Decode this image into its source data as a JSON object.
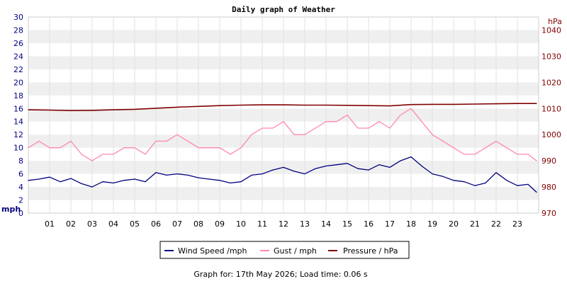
{
  "chart_data": {
    "type": "line",
    "title": "Daily graph of Weather",
    "footer": "Graph for: 17th May 2026; Load time: 0.06 s",
    "left_axis": {
      "label": "mph",
      "range": [
        0,
        30
      ],
      "ticks": [
        0,
        2,
        4,
        6,
        8,
        10,
        12,
        14,
        16,
        18,
        20,
        22,
        24,
        26,
        28,
        30
      ],
      "color": "#000080"
    },
    "right_axis": {
      "label": "hPa",
      "range": [
        970,
        1045
      ],
      "ticks": [
        970,
        980,
        990,
        1000,
        1010,
        1020,
        1030,
        1040
      ],
      "color": "#800000"
    },
    "x_axis": {
      "range": [
        0,
        24
      ],
      "ticks": [
        "01",
        "02",
        "03",
        "04",
        "05",
        "06",
        "07",
        "08",
        "09",
        "10",
        "11",
        "12",
        "13",
        "14",
        "15",
        "16",
        "17",
        "18",
        "19",
        "20",
        "21",
        "22",
        "23"
      ]
    },
    "grid": "horizontal bands",
    "legend_position": "bottom-center",
    "series": [
      {
        "name": "Wind Speed /mph",
        "axis": "left",
        "color": "#000080",
        "x": [
          0,
          0.5,
          1,
          1.5,
          2,
          2.5,
          3,
          3.5,
          4,
          4.5,
          5,
          5.5,
          6,
          6.5,
          7,
          7.5,
          8,
          8.5,
          9,
          9.5,
          10,
          10.5,
          11,
          11.5,
          12,
          12.5,
          13,
          13.5,
          14,
          14.5,
          15,
          15.5,
          16,
          16.5,
          17,
          17.5,
          18,
          18.5,
          19,
          19.5,
          20,
          20.5,
          21,
          21.5,
          22,
          22.5,
          23,
          23.5,
          23.9
        ],
        "values": [
          5.0,
          5.2,
          5.5,
          4.8,
          5.3,
          4.5,
          4.0,
          4.8,
          4.6,
          5.0,
          5.2,
          4.8,
          6.2,
          5.8,
          6.0,
          5.8,
          5.4,
          5.2,
          5.0,
          4.6,
          4.8,
          5.8,
          6.0,
          6.6,
          7.0,
          6.4,
          6.0,
          6.8,
          7.2,
          7.4,
          7.6,
          6.8,
          6.6,
          7.4,
          7.0,
          8.0,
          8.6,
          7.2,
          6.0,
          5.6,
          5.0,
          4.8,
          4.2,
          4.6,
          6.2,
          5.0,
          4.2,
          4.4,
          3.2
        ]
      },
      {
        "name": "Gust / mph",
        "axis": "left",
        "color": "#ff88aa",
        "x": [
          0,
          0.5,
          1,
          1.5,
          2,
          2.5,
          3,
          3.5,
          4,
          4.5,
          5,
          5.5,
          6,
          6.5,
          7,
          7.5,
          8,
          8.5,
          9,
          9.5,
          10,
          10.5,
          11,
          11.5,
          12,
          12.5,
          13,
          13.5,
          14,
          14.5,
          15,
          15.5,
          16,
          16.5,
          17,
          17.5,
          18,
          18.5,
          19,
          19.5,
          20,
          20.5,
          21,
          21.5,
          22,
          22.5,
          23,
          23.5,
          23.9
        ],
        "values": [
          10,
          11,
          10,
          10,
          11,
          9,
          8,
          9,
          9,
          10,
          10,
          9,
          11,
          11,
          12,
          11,
          10,
          10,
          10,
          9,
          10,
          12,
          13,
          13,
          14,
          12,
          12,
          13,
          14,
          14,
          15,
          13,
          13,
          14,
          13,
          15,
          16,
          14,
          12,
          11,
          10,
          9,
          9,
          10,
          11,
          10,
          9,
          9,
          8
        ]
      },
      {
        "name": "Pressure / hPa",
        "axis": "right",
        "color": "#800000",
        "x": [
          0,
          1,
          2,
          3,
          4,
          5,
          6,
          7,
          8,
          9,
          10,
          11,
          12,
          13,
          14,
          15,
          16,
          17,
          18,
          19,
          20,
          21,
          22,
          23,
          23.9
        ],
        "values": [
          1009.5,
          1009.4,
          1009.2,
          1009.3,
          1009.5,
          1009.7,
          1010.1,
          1010.5,
          1010.8,
          1011.1,
          1011.3,
          1011.4,
          1011.4,
          1011.3,
          1011.3,
          1011.2,
          1011.1,
          1011.0,
          1011.5,
          1011.6,
          1011.6,
          1011.7,
          1011.8,
          1011.9,
          1011.9
        ]
      }
    ]
  }
}
